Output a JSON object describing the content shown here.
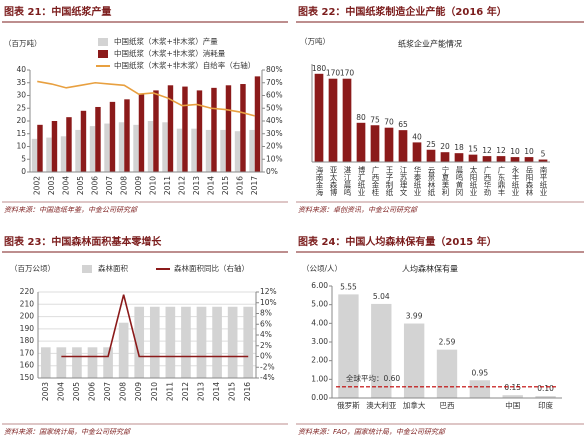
{
  "chart_data": [
    {
      "type": "bar",
      "title": "图表 21：中国纸浆产量",
      "ylabel": "（百万吨）",
      "categories": [
        "2002",
        "2003",
        "2004",
        "2005",
        "2006",
        "2007",
        "2008",
        "2009",
        "2010",
        "2011",
        "2012",
        "2013",
        "2014",
        "2015",
        "2016",
        "2017"
      ],
      "series": [
        {
          "name": "中国纸浆（木浆+非木浆）产量",
          "color": "#d3d3d3",
          "type": "bar",
          "values": [
            13,
            13.5,
            14,
            16.5,
            18,
            19,
            19.5,
            18.5,
            20,
            19.5,
            17,
            17,
            16.5,
            16.5,
            16,
            16.5
          ]
        },
        {
          "name": "中国纸浆（木浆+非木浆）消耗量",
          "color": "#8b1a1a",
          "type": "bar",
          "values": [
            18.5,
            20,
            21.5,
            24,
            25.5,
            27.5,
            28.5,
            30.5,
            32,
            34,
            33.5,
            32,
            33,
            34,
            34.5,
            37.5
          ]
        },
        {
          "name": "中国纸浆（木浆+非木浆）自给率（右轴）",
          "color": "#e8a040",
          "type": "line",
          "axis": "y2",
          "values": [
            71,
            69,
            66,
            68,
            70,
            69,
            68,
            61,
            62,
            58,
            52,
            53,
            50,
            49,
            47,
            44
          ]
        }
      ],
      "ylim": [
        0,
        40
      ],
      "yticks": [
        0,
        5,
        10,
        15,
        20,
        25,
        30,
        35,
        40
      ],
      "y2lim": [
        0,
        80
      ],
      "y2ticks": [
        {
          "value": 0,
          "label": "0%"
        },
        {
          "value": 10,
          "label": "10%"
        },
        {
          "value": 20,
          "label": "20%"
        },
        {
          "value": 30,
          "label": "30%"
        },
        {
          "value": 40,
          "label": "40%"
        },
        {
          "value": 50,
          "label": "50%"
        },
        {
          "value": 60,
          "label": "60%"
        },
        {
          "value": 70,
          "label": "70%"
        },
        {
          "value": 80,
          "label": "80%"
        }
      ],
      "grid": false,
      "source": "资料来源：中国造纸年鉴，中金公司研究部"
    },
    {
      "type": "bar",
      "title": "图表 22：中国纸浆制造企业产能（2016 年）",
      "subtitle": "纸浆企业产能情况",
      "ylabel": "（万吨）",
      "categories": [
        "海南金海",
        "亚太森博",
        "湛江晨鸣",
        "博汇纸业",
        "广西金桂",
        "王子制纸",
        "江苏理文",
        "华泰纸业",
        "云景林纸",
        "宁夏美利",
        "晨鸣黄冈",
        "太阳纸业",
        "广西华劲",
        "广东鼎丰",
        "永丰纸业",
        "岳阳森林",
        "南平纸业"
      ],
      "values": [
        180,
        170,
        170,
        80,
        75,
        70,
        65,
        40,
        25,
        20,
        18,
        15,
        12,
        12,
        10,
        10,
        5
      ],
      "color": "#8b1a1a",
      "data_labels": true,
      "ylim": [
        0,
        200
      ],
      "grid": false,
      "source": "资料来源：卓创资讯，中金公司研究部"
    },
    {
      "type": "bar",
      "title": "图表 23：中国森林面积基本零增长",
      "ylabel": "（百万公顷）",
      "categories": [
        "2003",
        "2004",
        "2005",
        "2006",
        "2007",
        "2008",
        "2009",
        "2010",
        "2011",
        "2012",
        "2013",
        "2014",
        "2015",
        "2016"
      ],
      "series": [
        {
          "name": "森林面积",
          "color": "#d3d3d3",
          "type": "bar",
          "values": [
            175,
            175,
            175,
            175,
            175,
            195,
            208,
            208,
            208,
            208,
            208,
            208,
            208,
            208
          ]
        },
        {
          "name": "森林面积同比（右轴）",
          "color": "#8b1a1a",
          "type": "line",
          "axis": "y2",
          "values": [
            null,
            0,
            0,
            0,
            0,
            11.5,
            0,
            0,
            0,
            0,
            0,
            0,
            0,
            0
          ]
        }
      ],
      "ylim": [
        150,
        220
      ],
      "yticks": [
        150,
        160,
        170,
        180,
        190,
        200,
        210,
        220
      ],
      "y2lim": [
        -4,
        12
      ],
      "y2ticks": [
        {
          "value": -4,
          "label": "-4%"
        },
        {
          "value": -2,
          "label": "-2%"
        },
        {
          "value": 0,
          "label": "0%"
        },
        {
          "value": 2,
          "label": "2%"
        },
        {
          "value": 4,
          "label": "4%"
        },
        {
          "value": 6,
          "label": "6%"
        },
        {
          "value": 8,
          "label": "8%"
        },
        {
          "value": 10,
          "label": "10%"
        },
        {
          "value": 12,
          "label": "12%"
        }
      ],
      "grid": true,
      "source": "资料来源：国家统计局，中金公司研究部"
    },
    {
      "type": "bar",
      "title": "图表 24：中国人均森林保有量（2015 年）",
      "subtitle": "人均森林保有量",
      "ylabel": "（公顷/人）",
      "categories": [
        "俄罗斯",
        "澳大利亚",
        "加拿大",
        "巴西",
        null,
        "中国",
        "印度"
      ],
      "values": [
        5.55,
        5.04,
        3.99,
        2.59,
        0.95,
        0.15,
        0.1
      ],
      "value_labels": [
        "5.55",
        "5.04",
        "3.99",
        "2.59",
        "0.95",
        "0.15",
        "0.10"
      ],
      "color": "#d3d3d3",
      "ylim": [
        0,
        6
      ],
      "yticks": [
        {
          "value": 0,
          "label": "0.00"
        },
        {
          "value": 1,
          "label": "1.00"
        },
        {
          "value": 2,
          "label": "2.00"
        },
        {
          "value": 3,
          "label": "3.00"
        },
        {
          "value": 4,
          "label": "4.00"
        },
        {
          "value": 5,
          "label": "5.00"
        },
        {
          "value": 6,
          "label": "6.00"
        }
      ],
      "reference_line": {
        "value": 0.6,
        "label": "全球平均：0.60",
        "color": "#c00000"
      },
      "grid": false,
      "source": "资料来源：FAO，国家统计局，中金公司研究部"
    }
  ]
}
